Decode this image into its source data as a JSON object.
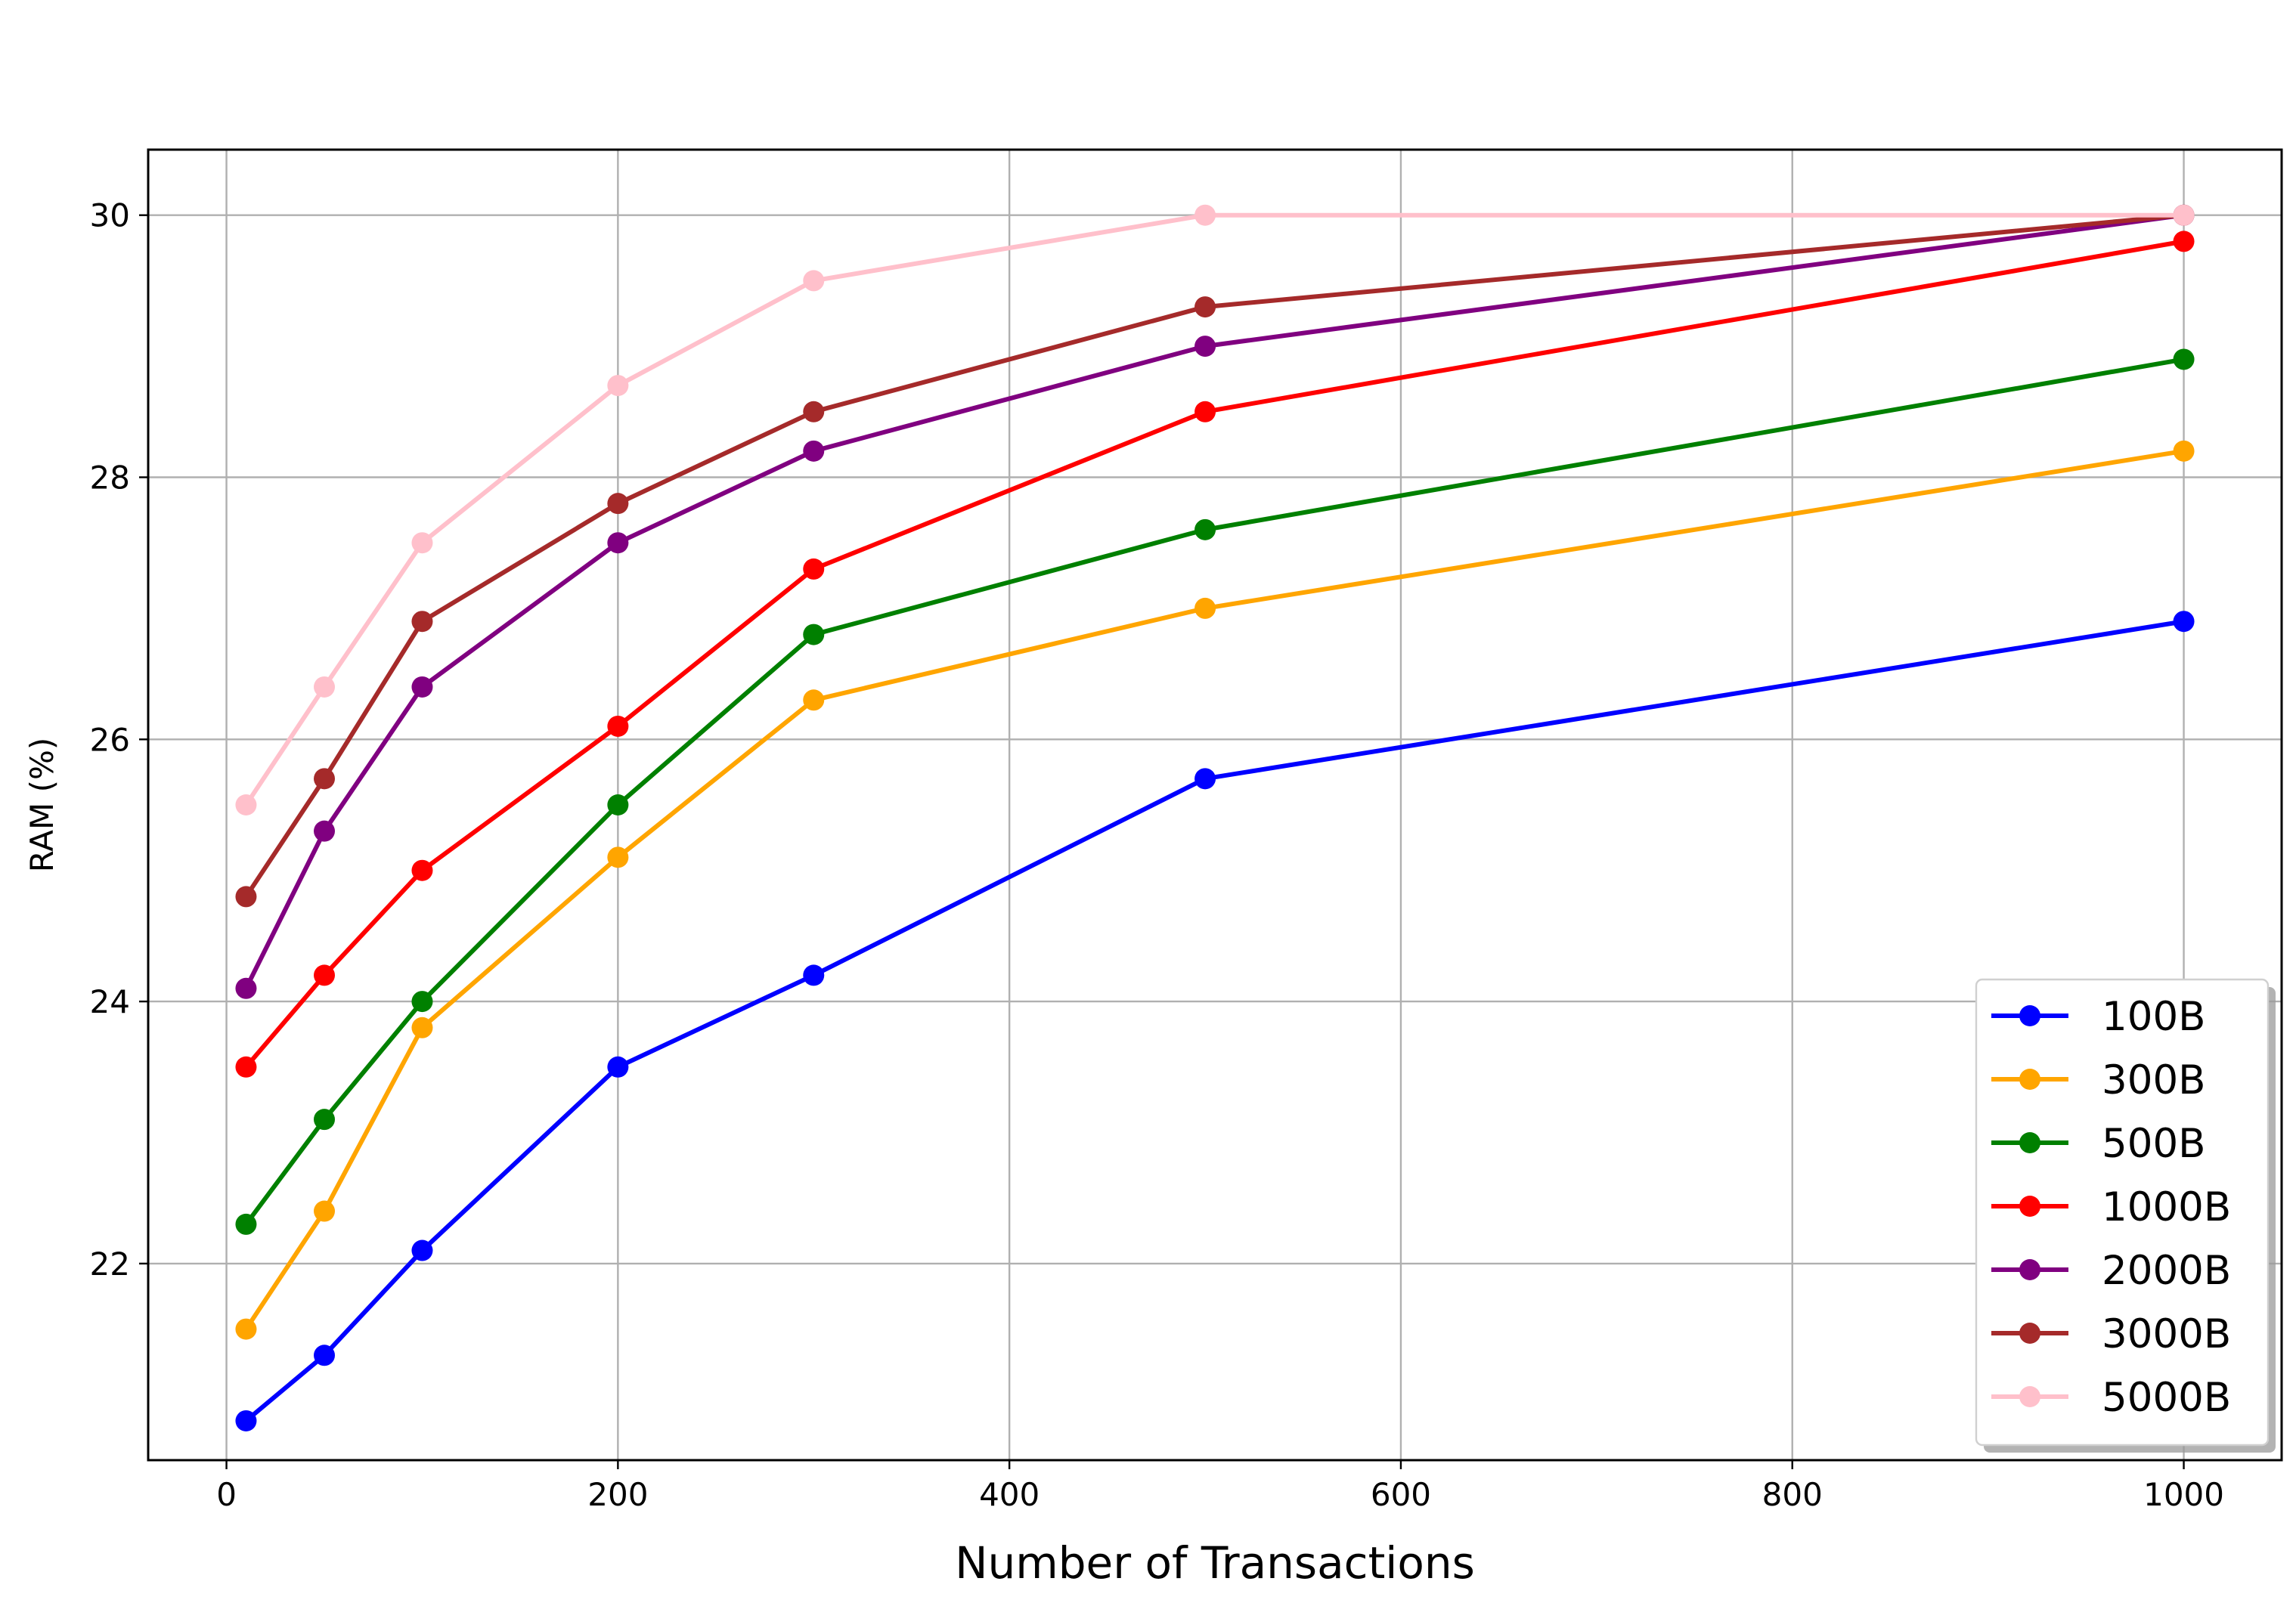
{
  "chart_data": {
    "type": "line",
    "title": "",
    "xlabel": "Number of Transactions",
    "ylabel": "RAM (%)",
    "xlim": [
      -40,
      1050
    ],
    "ylim": [
      20.5,
      30.5
    ],
    "xticks": [
      0,
      200,
      400,
      600,
      800,
      1000
    ],
    "yticks": [
      22,
      24,
      26,
      28,
      30
    ],
    "grid": true,
    "legend_position": "lower-right",
    "x": [
      10,
      50,
      100,
      200,
      300,
      500,
      1000
    ],
    "series": [
      {
        "name": "100B",
        "color": "#0000ff",
        "values": [
          20.8,
          21.3,
          22.1,
          23.5,
          24.2,
          25.7,
          26.9
        ]
      },
      {
        "name": "300B",
        "color": "#ffa500",
        "values": [
          21.5,
          22.4,
          23.8,
          25.1,
          26.3,
          27.0,
          28.2
        ]
      },
      {
        "name": "500B",
        "color": "#008000",
        "values": [
          22.3,
          23.1,
          24.0,
          25.5,
          26.8,
          27.6,
          28.9
        ]
      },
      {
        "name": "1000B",
        "color": "#ff0000",
        "values": [
          23.5,
          24.2,
          25.0,
          26.1,
          27.3,
          28.5,
          29.8
        ]
      },
      {
        "name": "2000B",
        "color": "#800080",
        "values": [
          24.1,
          25.3,
          26.4,
          27.5,
          28.2,
          29.0,
          30.0
        ]
      },
      {
        "name": "3000B",
        "color": "#a52a2a",
        "values": [
          24.8,
          25.7,
          26.9,
          27.8,
          28.5,
          29.3,
          30.0
        ]
      },
      {
        "name": "5000B",
        "color": "#ffc0cb",
        "values": [
          25.5,
          26.4,
          27.5,
          28.7,
          29.5,
          30.0,
          30.0
        ]
      }
    ]
  }
}
